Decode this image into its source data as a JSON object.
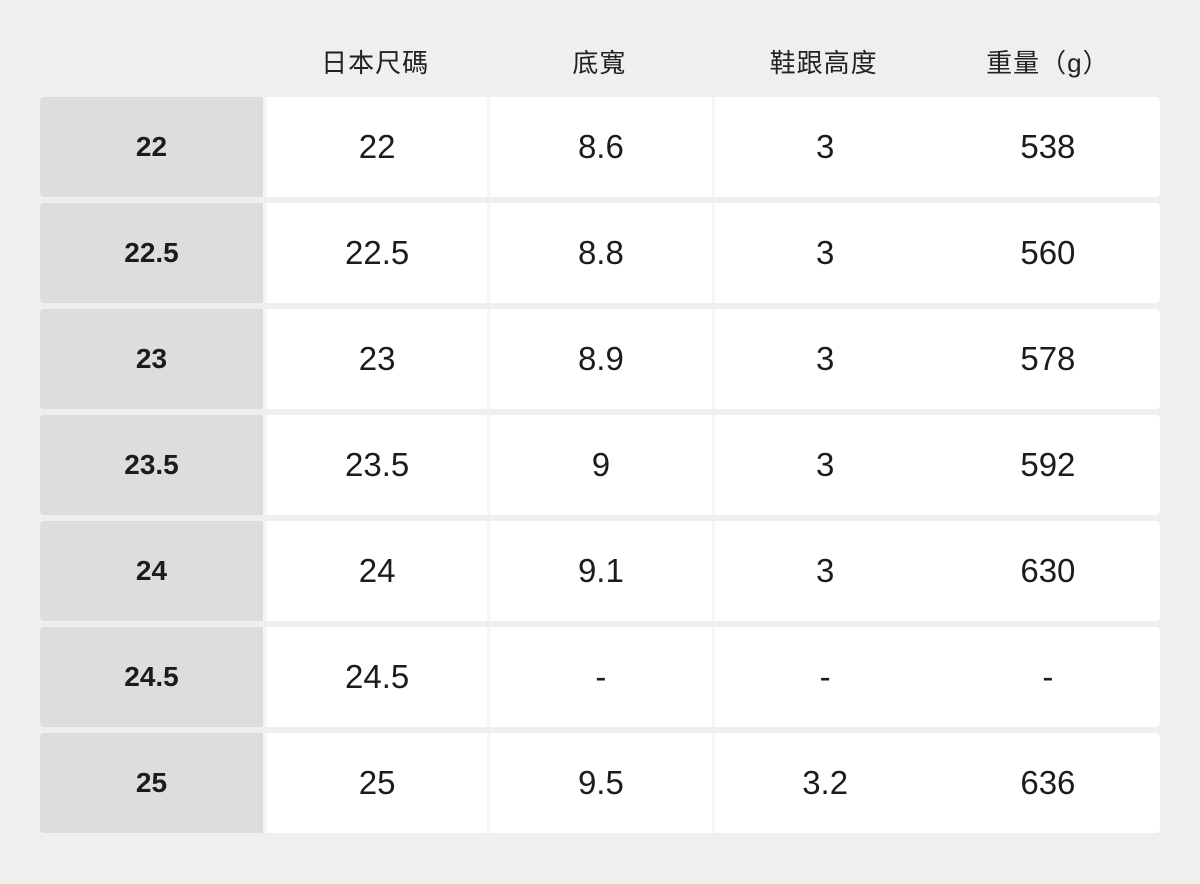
{
  "chart_data": {
    "type": "table",
    "title": "",
    "columns": [
      "",
      "日本尺碼",
      "底寬",
      "鞋跟高度",
      "重量（g）"
    ],
    "rows": [
      {
        "label": "22",
        "values": [
          "22",
          "8.6",
          "3",
          "538"
        ]
      },
      {
        "label": "22.5",
        "values": [
          "22.5",
          "8.8",
          "3",
          "560"
        ]
      },
      {
        "label": "23",
        "values": [
          "23",
          "8.9",
          "3",
          "578"
        ]
      },
      {
        "label": "23.5",
        "values": [
          "23.5",
          "9",
          "3",
          "592"
        ]
      },
      {
        "label": "24",
        "values": [
          "24",
          "9.1",
          "3",
          "630"
        ]
      },
      {
        "label": "24.5",
        "values": [
          "24.5",
          "-",
          "-",
          "-"
        ]
      },
      {
        "label": "25",
        "values": [
          "25",
          "9.5",
          "3.2",
          "636"
        ]
      }
    ]
  },
  "colors": {
    "page_background": "#f0efee",
    "row_label_background": "#dedddd",
    "data_cell_background": "#ffffff",
    "text": "#1c1c1c",
    "column_separator": "#f7f6f5"
  }
}
